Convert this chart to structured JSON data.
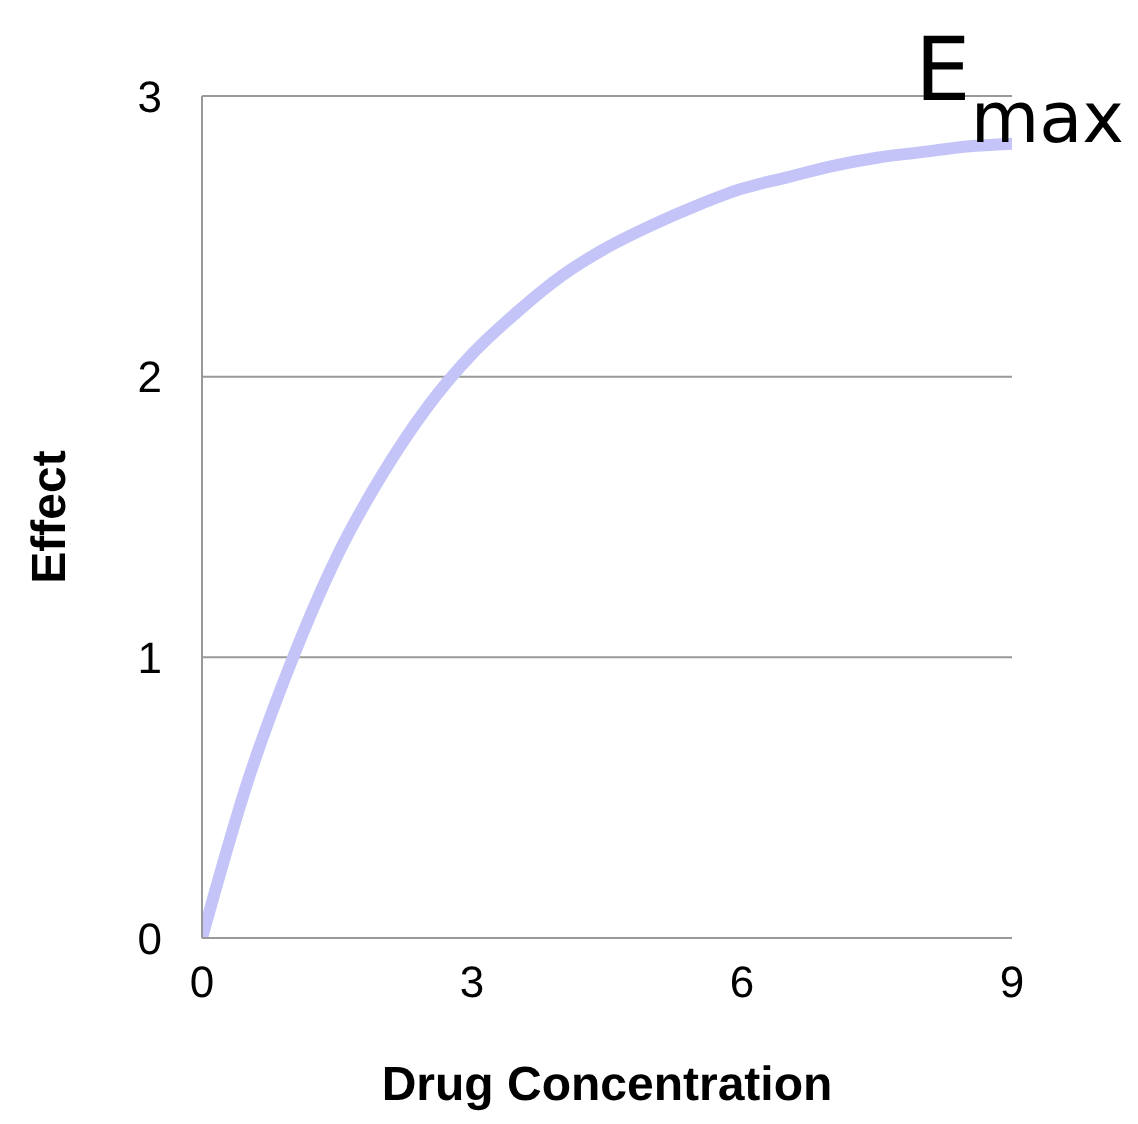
{
  "chart_data": {
    "type": "line",
    "xlabel": "Drug Concentration",
    "ylabel": "Effect",
    "annotations": [
      "E$_{max}$"
    ],
    "x": [
      0,
      0.5,
      1,
      1.5,
      2,
      2.5,
      3,
      3.5,
      4,
      4.5,
      5,
      5.5,
      6,
      6.5,
      7,
      7.5,
      8,
      8.5,
      9
    ],
    "series": [
      {
        "color": "#c4c4f8",
        "values": [
          0,
          0.55,
          0.99,
          1.36,
          1.65,
          1.89,
          2.08,
          2.23,
          2.36,
          2.46,
          2.54,
          2.61,
          2.67,
          2.71,
          2.75,
          2.78,
          2.8,
          2.82,
          2.83
        ]
      }
    ],
    "xlim": [
      0,
      9
    ],
    "xticks": [
      0,
      3,
      6,
      9
    ],
    "ylim": [
      0,
      3
    ],
    "yticks": [
      0,
      1,
      2,
      3
    ],
    "grid": "y",
    "legend": false,
    "marker": "none",
    "line_style": "solid"
  }
}
